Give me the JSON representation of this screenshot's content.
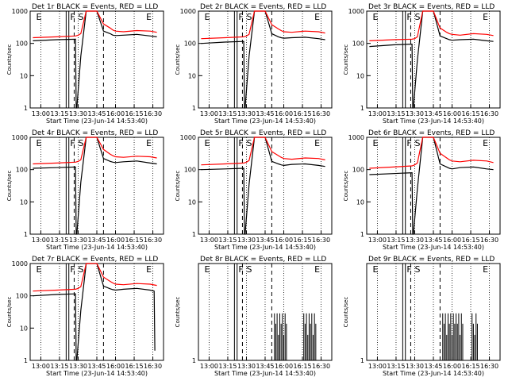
{
  "figure": {
    "background": "#ffffff",
    "axis_color": "#000000",
    "events_color": "#000000",
    "lld_color": "#ff0000"
  },
  "chart_data": [
    {
      "type": "line",
      "title": "Det 1r BLACK = Events, RED = LLD",
      "xlabel": "Start Time (23-Jun-14 14:53:40)",
      "ylabel": "Counts/sec",
      "yscale": "log",
      "ylim": [
        1,
        1000
      ],
      "x_ticks": [
        "13:00",
        "13:15",
        "13:30",
        "13:45",
        "16:00",
        "16:15",
        "16:30"
      ],
      "y_ticks": [
        "1",
        "10",
        "100",
        "1000"
      ],
      "markers": [
        {
          "label": "E",
          "x": 0.045
        },
        {
          "label": "F",
          "x": 0.3
        },
        {
          "label": "S",
          "x": 0.36
        },
        {
          "label": "E",
          "x": 0.87
        }
      ],
      "series": [
        {
          "name": "BLACK = Events",
          "color": "#000000",
          "x": [
            0.02,
            0.2,
            0.34,
            0.345,
            0.35,
            0.38,
            0.42,
            0.45,
            0.5,
            0.55,
            0.6,
            0.62,
            0.64,
            0.7,
            0.8,
            0.9,
            0.95
          ],
          "y": [
            120,
            130,
            135,
            1,
            1,
            40,
            1000,
            1000,
            1000,
            240,
            200,
            180,
            175,
            180,
            190,
            170,
            160
          ]
        },
        {
          "name": "RED = LLD",
          "color": "#ff0000",
          "x": [
            0.02,
            0.2,
            0.34,
            0.36,
            0.38,
            0.42,
            0.45,
            0.5,
            0.55,
            0.6,
            0.62,
            0.64,
            0.7,
            0.8,
            0.9,
            0.95
          ],
          "y": [
            150,
            160,
            170,
            180,
            200,
            1000,
            1000,
            1000,
            400,
            300,
            260,
            240,
            230,
            250,
            240,
            220
          ]
        }
      ],
      "verticals_solid": [
        0.27,
        0.29
      ],
      "verticals_dashed": [
        0.33,
        0.55
      ]
    },
    {
      "type": "line",
      "title": "Det 2r BLACK = Events, RED = LLD",
      "xlabel": "Start Time (23-Jun-14 14:53:40)",
      "ylabel": "Counts/sec",
      "yscale": "log",
      "ylim": [
        1,
        1000
      ],
      "x_ticks": [
        "13:00",
        "13:15",
        "13:30",
        "13:45",
        "16:00",
        "16:15",
        "16:30"
      ],
      "y_ticks": [
        "1",
        "10",
        "100",
        "1000"
      ],
      "markers": [
        {
          "label": "E",
          "x": 0.045
        },
        {
          "label": "F",
          "x": 0.3
        },
        {
          "label": "S",
          "x": 0.36
        },
        {
          "label": "E",
          "x": 0.87
        }
      ],
      "series": [
        {
          "name": "BLACK = Events",
          "color": "#000000",
          "x": [
            0.02,
            0.2,
            0.34,
            0.345,
            0.35,
            0.38,
            0.42,
            0.45,
            0.5,
            0.55,
            0.6,
            0.62,
            0.64,
            0.7,
            0.8,
            0.9,
            0.95
          ],
          "y": [
            100,
            110,
            115,
            1,
            1,
            40,
            1000,
            1000,
            1000,
            200,
            160,
            150,
            145,
            150,
            155,
            140,
            130
          ]
        },
        {
          "name": "RED = LLD",
          "color": "#ff0000",
          "x": [
            0.02,
            0.2,
            0.34,
            0.36,
            0.38,
            0.42,
            0.45,
            0.5,
            0.55,
            0.6,
            0.62,
            0.64,
            0.7,
            0.8,
            0.9,
            0.95
          ],
          "y": [
            140,
            150,
            160,
            170,
            190,
            1000,
            1000,
            1000,
            380,
            280,
            250,
            230,
            220,
            240,
            230,
            210
          ]
        }
      ],
      "verticals_solid": [
        0.27,
        0.29
      ],
      "verticals_dashed": [
        0.33,
        0.55
      ]
    },
    {
      "type": "line",
      "title": "Det 3r BLACK = Events, RED = LLD",
      "xlabel": "Start Time (23-Jun-14 14:53:40)",
      "ylabel": "Counts/sec",
      "yscale": "log",
      "ylim": [
        1,
        1000
      ],
      "x_ticks": [
        "13:00",
        "13:15",
        "13:30",
        "13:45",
        "16:00",
        "16:15",
        "16:30"
      ],
      "y_ticks": [
        "1",
        "10",
        "100",
        "1000"
      ],
      "markers": [
        {
          "label": "E",
          "x": 0.045
        },
        {
          "label": "F",
          "x": 0.3
        },
        {
          "label": "S",
          "x": 0.36
        },
        {
          "label": "E",
          "x": 0.87
        }
      ],
      "series": [
        {
          "name": "BLACK = Events",
          "color": "#000000",
          "x": [
            0.02,
            0.2,
            0.34,
            0.345,
            0.35,
            0.38,
            0.42,
            0.45,
            0.5,
            0.55,
            0.6,
            0.62,
            0.64,
            0.7,
            0.8,
            0.9,
            0.95
          ],
          "y": [
            80,
            90,
            95,
            1,
            1,
            30,
            1000,
            1000,
            1000,
            170,
            140,
            130,
            125,
            130,
            135,
            120,
            115
          ]
        },
        {
          "name": "RED = LLD",
          "color": "#ff0000",
          "x": [
            0.02,
            0.2,
            0.34,
            0.36,
            0.38,
            0.42,
            0.45,
            0.5,
            0.55,
            0.6,
            0.62,
            0.64,
            0.7,
            0.8,
            0.9,
            0.95
          ],
          "y": [
            120,
            130,
            135,
            140,
            160,
            1000,
            1000,
            1000,
            300,
            220,
            200,
            190,
            180,
            200,
            190,
            175
          ]
        }
      ],
      "verticals_solid": [
        0.27,
        0.29
      ],
      "verticals_dashed": [
        0.33,
        0.55
      ]
    },
    {
      "type": "line",
      "title": "Det 4r BLACK = Events, RED = LLD",
      "xlabel": "Start Time (23-Jun-14 14:53:40)",
      "ylabel": "Counts/sec",
      "yscale": "log",
      "ylim": [
        1,
        1000
      ],
      "x_ticks": [
        "13:00",
        "13:15",
        "13:30",
        "13:45",
        "16:00",
        "16:15",
        "16:30"
      ],
      "y_ticks": [
        "1",
        "10",
        "100",
        "1000"
      ],
      "markers": [
        {
          "label": "E",
          "x": 0.045
        },
        {
          "label": "F",
          "x": 0.3
        },
        {
          "label": "S",
          "x": 0.36
        },
        {
          "label": "E",
          "x": 0.87
        }
      ],
      "series": [
        {
          "name": "BLACK = Events",
          "color": "#000000",
          "x": [
            0.02,
            0.2,
            0.34,
            0.345,
            0.35,
            0.38,
            0.42,
            0.45,
            0.5,
            0.55,
            0.6,
            0.62,
            0.64,
            0.7,
            0.8,
            0.9,
            0.95
          ],
          "y": [
            110,
            115,
            120,
            1,
            1,
            40,
            1000,
            1000,
            1000,
            220,
            180,
            170,
            165,
            175,
            185,
            160,
            150
          ]
        },
        {
          "name": "RED = LLD",
          "color": "#ff0000",
          "x": [
            0.02,
            0.2,
            0.34,
            0.36,
            0.38,
            0.42,
            0.45,
            0.5,
            0.55,
            0.6,
            0.62,
            0.64,
            0.7,
            0.8,
            0.9,
            0.95
          ],
          "y": [
            150,
            160,
            170,
            180,
            200,
            1000,
            1000,
            1000,
            420,
            300,
            270,
            250,
            240,
            260,
            250,
            230
          ]
        }
      ],
      "verticals_solid": [
        0.27,
        0.29
      ],
      "verticals_dashed": [
        0.33,
        0.55
      ]
    },
    {
      "type": "line",
      "title": "Det 5r BLACK = Events, RED = LLD",
      "xlabel": "Start Time (23-Jun-14 14:53:40)",
      "ylabel": "Counts/sec",
      "yscale": "log",
      "ylim": [
        1,
        1000
      ],
      "x_ticks": [
        "13:00",
        "13:15",
        "13:30",
        "13:45",
        "16:00",
        "16:15",
        "16:30"
      ],
      "y_ticks": [
        "1",
        "10",
        "100",
        "1000"
      ],
      "markers": [
        {
          "label": "E",
          "x": 0.045
        },
        {
          "label": "F",
          "x": 0.3
        },
        {
          "label": "S",
          "x": 0.36
        },
        {
          "label": "E",
          "x": 0.87
        }
      ],
      "series": [
        {
          "name": "BLACK = Events",
          "color": "#000000",
          "x": [
            0.02,
            0.2,
            0.34,
            0.345,
            0.35,
            0.38,
            0.42,
            0.45,
            0.5,
            0.55,
            0.6,
            0.62,
            0.64,
            0.7,
            0.8,
            0.9,
            0.95
          ],
          "y": [
            100,
            105,
            110,
            1,
            1,
            35,
            1000,
            1000,
            1000,
            180,
            150,
            140,
            135,
            145,
            150,
            135,
            125
          ]
        },
        {
          "name": "RED = LLD",
          "color": "#ff0000",
          "x": [
            0.02,
            0.2,
            0.34,
            0.36,
            0.38,
            0.42,
            0.45,
            0.5,
            0.55,
            0.6,
            0.62,
            0.64,
            0.7,
            0.8,
            0.9,
            0.95
          ],
          "y": [
            140,
            150,
            160,
            170,
            190,
            1000,
            1000,
            1000,
            360,
            270,
            240,
            220,
            210,
            230,
            220,
            200
          ]
        }
      ],
      "verticals_solid": [
        0.27,
        0.29
      ],
      "verticals_dashed": [
        0.33,
        0.55
      ]
    },
    {
      "type": "line",
      "title": "Det 6r BLACK = Events, RED = LLD",
      "xlabel": "Start Time (23-Jun-14 14:53:40)",
      "ylabel": "Counts/sec",
      "yscale": "log",
      "ylim": [
        1,
        1000
      ],
      "x_ticks": [
        "13:00",
        "13:15",
        "13:30",
        "13:45",
        "16:00",
        "16:15",
        "16:30"
      ],
      "y_ticks": [
        "1",
        "10",
        "100",
        "1000"
      ],
      "markers": [
        {
          "label": "E",
          "x": 0.045
        },
        {
          "label": "F",
          "x": 0.3
        },
        {
          "label": "S",
          "x": 0.36
        },
        {
          "label": "E",
          "x": 0.87
        }
      ],
      "series": [
        {
          "name": "BLACK = Events",
          "color": "#000000",
          "x": [
            0.02,
            0.2,
            0.34,
            0.345,
            0.35,
            0.38,
            0.42,
            0.45,
            0.5,
            0.55,
            0.6,
            0.62,
            0.64,
            0.7,
            0.8,
            0.9,
            0.95
          ],
          "y": [
            70,
            75,
            80,
            1,
            1,
            25,
            1000,
            1000,
            1000,
            150,
            120,
            110,
            105,
            115,
            120,
            105,
            100
          ]
        },
        {
          "name": "RED = LLD",
          "color": "#ff0000",
          "x": [
            0.02,
            0.2,
            0.34,
            0.36,
            0.38,
            0.42,
            0.45,
            0.5,
            0.55,
            0.6,
            0.62,
            0.64,
            0.7,
            0.8,
            0.9,
            0.95
          ],
          "y": [
            110,
            120,
            130,
            140,
            160,
            1000,
            1000,
            1000,
            320,
            230,
            200,
            185,
            175,
            195,
            185,
            165
          ]
        }
      ],
      "verticals_solid": [
        0.27,
        0.29
      ],
      "verticals_dashed": [
        0.33,
        0.55
      ]
    },
    {
      "type": "line",
      "title": "Det 7r BLACK = Events, RED = LLD",
      "xlabel": "Start Time (23-Jun-14 14:53:40)",
      "ylabel": "Counts/sec",
      "yscale": "log",
      "ylim": [
        1,
        1000
      ],
      "x_ticks": [
        "13:00",
        "13:15",
        "13:30",
        "13:45",
        "16:00",
        "16:15",
        "16:30"
      ],
      "y_ticks": [
        "1",
        "10",
        "100",
        "1000"
      ],
      "markers": [
        {
          "label": "E",
          "x": 0.045
        },
        {
          "label": "F",
          "x": 0.3
        },
        {
          "label": "S",
          "x": 0.36
        },
        {
          "label": "E",
          "x": 0.87
        }
      ],
      "series": [
        {
          "name": "BLACK = Events",
          "color": "#000000",
          "x": [
            0.02,
            0.2,
            0.34,
            0.345,
            0.35,
            0.38,
            0.42,
            0.45,
            0.5,
            0.55,
            0.6,
            0.62,
            0.64,
            0.7,
            0.8,
            0.9,
            0.93,
            0.935
          ],
          "y": [
            100,
            110,
            115,
            1,
            1,
            35,
            1000,
            1000,
            1000,
            200,
            165,
            155,
            150,
            160,
            170,
            150,
            140,
            2
          ]
        },
        {
          "name": "RED = LLD",
          "color": "#ff0000",
          "x": [
            0.02,
            0.2,
            0.34,
            0.36,
            0.38,
            0.42,
            0.45,
            0.5,
            0.55,
            0.6,
            0.62,
            0.64,
            0.7,
            0.8,
            0.9,
            0.95
          ],
          "y": [
            140,
            150,
            160,
            170,
            190,
            1000,
            1000,
            1000,
            380,
            280,
            250,
            230,
            220,
            240,
            230,
            210
          ]
        }
      ],
      "verticals_solid": [
        0.27,
        0.29
      ],
      "verticals_dashed": [
        0.33,
        0.55
      ]
    },
    {
      "type": "line",
      "title": "Det 8r BLACK = Events, RED = LLD",
      "xlabel": "Start Time (23-Jun-14 14:53:40)",
      "ylabel": "Counts/sec",
      "yscale": "log",
      "ylim": [
        1,
        2
      ],
      "x_ticks": [
        "13:00",
        "13:15",
        "13:30",
        "13:45",
        "16:00",
        "16:15",
        "16:30"
      ],
      "y_ticks": [
        "1"
      ],
      "markers": [
        {
          "label": "E",
          "x": 0.045
        },
        {
          "label": "F",
          "x": 0.3
        },
        {
          "label": "S",
          "x": 0.36
        },
        {
          "label": "E",
          "x": 0.87
        }
      ],
      "series": [
        {
          "name": "BLACK = Events",
          "color": "#000000",
          "spikes": [
            0.57,
            0.58,
            0.59,
            0.6,
            0.61,
            0.62,
            0.63,
            0.64,
            0.65,
            0.66,
            0.79,
            0.8,
            0.81,
            0.82,
            0.83,
            0.84,
            0.85,
            0.86,
            0.87,
            0.88
          ],
          "y": [
            1.4,
            1.3,
            1.4,
            1.2,
            1.4,
            1.3,
            1.4,
            1.2,
            1.4,
            1.3,
            1.4,
            1.3,
            1.4,
            1.2,
            1.4,
            1.3,
            1.4,
            1.2,
            1.4,
            1.3
          ]
        }
      ],
      "verticals_solid": [
        0.27,
        0.29
      ],
      "verticals_dashed": [
        0.33,
        0.55
      ]
    },
    {
      "type": "line",
      "title": "Det 9r BLACK = Events, RED = LLD",
      "xlabel": "Start Time (23-Jun-14 14:53:40)",
      "ylabel": "Counts/sec",
      "yscale": "log",
      "ylim": [
        1,
        2
      ],
      "x_ticks": [
        "13:00",
        "13:15",
        "13:30",
        "13:45",
        "16:00",
        "16:15",
        "16:30"
      ],
      "y_ticks": [
        "1"
      ],
      "markers": [
        {
          "label": "E",
          "x": 0.045
        },
        {
          "label": "F",
          "x": 0.3
        },
        {
          "label": "S",
          "x": 0.36
        },
        {
          "label": "E",
          "x": 0.87
        }
      ],
      "series": [
        {
          "name": "BLACK = Events",
          "color": "#000000",
          "spikes": [
            0.57,
            0.58,
            0.59,
            0.6,
            0.61,
            0.62,
            0.63,
            0.64,
            0.65,
            0.66,
            0.67,
            0.68,
            0.69,
            0.7,
            0.71,
            0.72,
            0.79,
            0.8,
            0.81,
            0.82,
            0.83
          ],
          "y": [
            1.4,
            1.3,
            1.4,
            1.2,
            1.4,
            1.3,
            1.4,
            1.2,
            1.4,
            1.3,
            1.4,
            1.3,
            1.4,
            1.2,
            1.4,
            1.3,
            1.4,
            1.3,
            1.2,
            1.4,
            1.3
          ]
        }
      ],
      "verticals_solid": [
        0.27,
        0.29
      ],
      "verticals_dashed": [
        0.33,
        0.55
      ]
    }
  ]
}
